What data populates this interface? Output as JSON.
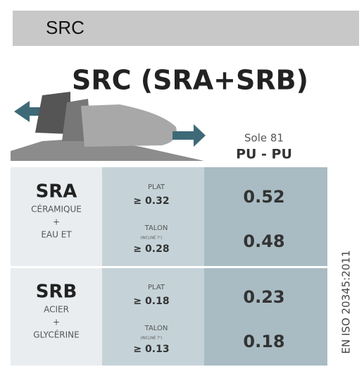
{
  "header": {
    "title": "SRC"
  },
  "title": "SRC (SRA+SRB)",
  "sole": {
    "label": "Sole 81",
    "material": "PU - PU"
  },
  "table": {
    "rows": [
      {
        "name": "SRA",
        "lines": [
          "CÉRAMIQUE",
          "+",
          "EAU ET"
        ],
        "conditions": [
          {
            "label": "PLAT",
            "threshold": "≥ 0.32"
          },
          {
            "label": "TALON",
            "note": "(INCLINÉ 7°)",
            "threshold": "≥ 0.28"
          }
        ],
        "values": [
          0.52,
          0.48
        ]
      },
      {
        "name": "SRB",
        "lines": [
          "ACIER",
          "+",
          "GLYCÉRINE"
        ],
        "conditions": [
          {
            "label": "PLAT",
            "threshold": "≥ 0.18"
          },
          {
            "label": "TALON",
            "note": "(INCLINÉ 7°)",
            "threshold": "≥ 0.13"
          }
        ],
        "values": [
          0.23,
          0.18
        ]
      }
    ]
  },
  "standard": "EN ISO 20345:2011"
}
